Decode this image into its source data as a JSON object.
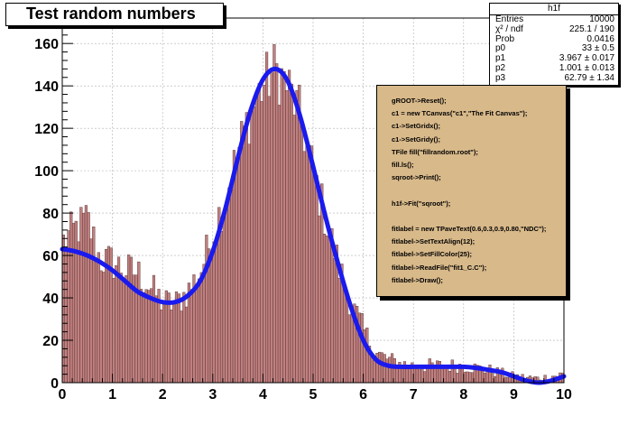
{
  "chart_data": {
    "type": "bar",
    "title": "Test random numbers",
    "xlim": [
      0,
      10
    ],
    "ylim": [
      0,
      172
    ],
    "x_ticks": [
      "0",
      "1",
      "2",
      "3",
      "4",
      "5",
      "6",
      "7",
      "8",
      "9",
      "10"
    ],
    "y_ticks": [
      "0",
      "20",
      "40",
      "60",
      "80",
      "100",
      "120",
      "140",
      "160"
    ],
    "grid": true,
    "histogram": {
      "name": "h1f",
      "bin_range": [
        0,
        10
      ],
      "bins": 200,
      "fill_color": "#c08080",
      "sampled_bin_heights": [
        {
          "x": 0.0,
          "y": 66
        },
        {
          "x": 0.25,
          "y": 72
        },
        {
          "x": 0.5,
          "y": 77
        },
        {
          "x": 0.75,
          "y": 58
        },
        {
          "x": 1.0,
          "y": 57
        },
        {
          "x": 1.25,
          "y": 53
        },
        {
          "x": 1.5,
          "y": 52
        },
        {
          "x": 1.75,
          "y": 45
        },
        {
          "x": 2.0,
          "y": 38
        },
        {
          "x": 2.25,
          "y": 37
        },
        {
          "x": 2.5,
          "y": 43
        },
        {
          "x": 2.75,
          "y": 52
        },
        {
          "x": 3.0,
          "y": 70
        },
        {
          "x": 3.25,
          "y": 88
        },
        {
          "x": 3.5,
          "y": 108
        },
        {
          "x": 3.75,
          "y": 128
        },
        {
          "x": 4.0,
          "y": 140
        },
        {
          "x": 4.25,
          "y": 148
        },
        {
          "x": 4.5,
          "y": 140
        },
        {
          "x": 4.75,
          "y": 125
        },
        {
          "x": 5.0,
          "y": 100
        },
        {
          "x": 5.25,
          "y": 77
        },
        {
          "x": 5.5,
          "y": 56
        },
        {
          "x": 5.75,
          "y": 38
        },
        {
          "x": 6.0,
          "y": 25
        },
        {
          "x": 6.25,
          "y": 14
        },
        {
          "x": 6.5,
          "y": 11
        },
        {
          "x": 6.75,
          "y": 9
        },
        {
          "x": 7.0,
          "y": 8
        },
        {
          "x": 7.5,
          "y": 8
        },
        {
          "x": 8.0,
          "y": 8
        },
        {
          "x": 8.5,
          "y": 6
        },
        {
          "x": 9.0,
          "y": 3
        },
        {
          "x": 9.5,
          "y": 2
        },
        {
          "x": 10.0,
          "y": 4
        }
      ]
    },
    "fit_curve": {
      "name": "sqroot",
      "color": "#1a1aee",
      "x": [
        0,
        0.25,
        0.5,
        0.75,
        1.0,
        1.25,
        1.5,
        1.75,
        2.0,
        2.25,
        2.5,
        2.75,
        3.0,
        3.25,
        3.5,
        3.75,
        4.0,
        4.25,
        4.5,
        4.75,
        5.0,
        5.25,
        5.5,
        5.75,
        6.0,
        6.25,
        6.5,
        6.75,
        7.0,
        7.25,
        7.5,
        7.75,
        8.0,
        8.25,
        8.5,
        8.75,
        9.0,
        9.25,
        9.5,
        9.75,
        10.0
      ],
      "y": [
        63,
        62,
        60,
        57,
        53,
        48,
        43,
        40,
        38,
        38,
        41,
        48,
        62,
        82,
        106,
        128,
        143,
        148,
        142,
        125,
        102,
        78,
        56,
        36,
        20,
        11,
        8,
        7.5,
        7.5,
        7.5,
        7.5,
        7.5,
        7.5,
        7,
        6,
        5,
        3,
        1,
        0,
        1,
        3
      ]
    }
  },
  "stats": {
    "name": "h1f",
    "rows": [
      {
        "label": "Entries",
        "value": "10000"
      },
      {
        "label": "χ² / ndf",
        "value": "225.1 / 190"
      },
      {
        "label": "Prob",
        "value": "0.0416"
      },
      {
        "label": "p0",
        "value": "33 ± 0.5"
      },
      {
        "label": "p1",
        "value": "3.967 ± 0.017"
      },
      {
        "label": "p2",
        "value": "1.001 ± 0.013"
      },
      {
        "label": "p3",
        "value": "62.79 ± 1.34"
      }
    ]
  },
  "code_lines": [
    "gROOT->Reset();",
    "c1 = new TCanvas(\"c1\",\"The Fit Canvas\");",
    "c1->SetGridx();",
    "c1->SetGridy();",
    "TFile fill(\"fillrandom.root\");",
    "fill.ls();",
    "sqroot->Print();",
    "",
    "h1f->Fit(\"sqroot\");",
    "",
    "fitlabel = new TPaveText(0.6,0.3,0.9,0.80,\"NDC\");",
    "fitlabel->SetTextAlign(12);",
    "fitlabel->SetFillColor(25);",
    "fitlabel->ReadFile(\"fit1_C.C\");",
    "fitlabel->Draw();"
  ],
  "colors": {
    "background": "#ffffff",
    "frame": "#000000",
    "grid": "#b0b0b0",
    "histogram_fill": "#c08080",
    "fit_curve": "#1a1aee",
    "code_box_fill": "#d8b98a"
  }
}
